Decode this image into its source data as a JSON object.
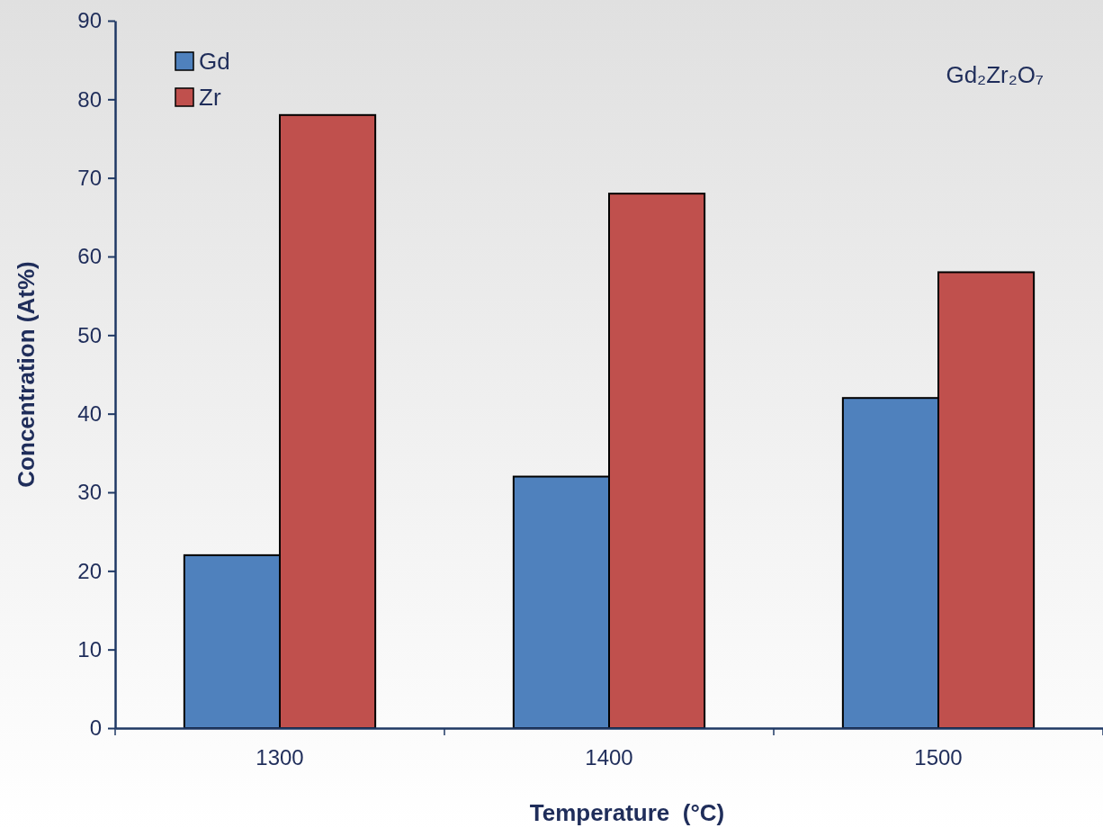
{
  "chart_data": {
    "type": "bar",
    "xlabel": "Temperature  (°C)",
    "ylabel": "Concentration (At%)",
    "categories": [
      "1300",
      "1400",
      "1500"
    ],
    "series": [
      {
        "name": "Gd",
        "color": "#4f81bd",
        "values": [
          22,
          32,
          42
        ]
      },
      {
        "name": "Zr",
        "color": "#c0504d",
        "values": [
          78,
          68,
          58
        ]
      }
    ],
    "ylim": [
      0,
      90
    ],
    "yticks": [
      0,
      10,
      20,
      30,
      40,
      50,
      60,
      70,
      80,
      90
    ],
    "grid": false,
    "legend": "top left",
    "annotations": [
      "Gd₂Zr₂O₇"
    ]
  }
}
